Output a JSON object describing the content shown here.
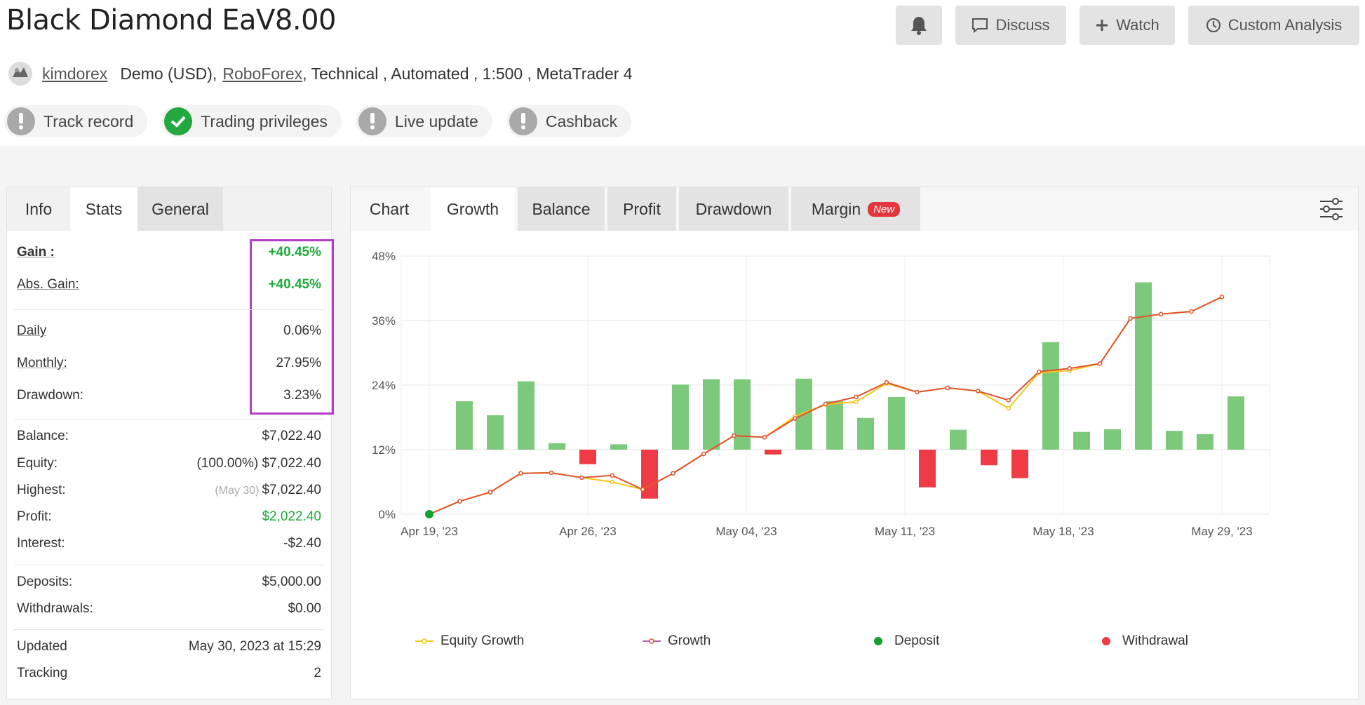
{
  "header": {
    "title": "Black Diamond EaV8.00",
    "buttons": {
      "discuss": "Discuss",
      "watch": "Watch",
      "custom": "Custom Analysis"
    },
    "user": "kimdorex",
    "account_prefix": "Demo (USD),",
    "broker": "RoboForex",
    "account_suffix": ", Technical , Automated , 1:500 , MetaTrader 4",
    "badges": [
      "Track record",
      "Trading privileges",
      "Live update",
      "Cashback"
    ]
  },
  "left": {
    "tabs": [
      "Info",
      "Stats",
      "General"
    ],
    "stats": {
      "gain": {
        "label": "Gain :",
        "value": "+40.45%"
      },
      "abs_gain": {
        "label": "Abs. Gain:",
        "value": "+40.45%"
      },
      "daily": {
        "label": "Daily",
        "value": "0.06%"
      },
      "monthly": {
        "label": "Monthly:",
        "value": "27.95%"
      },
      "drawdown": {
        "label": "Drawdown:",
        "value": "3.23%"
      },
      "balance": {
        "label": "Balance:",
        "value": "$7,022.40"
      },
      "equity": {
        "label": "Equity:",
        "value": "(100.00%) $7,022.40"
      },
      "highest": {
        "label": "Highest:",
        "note": "(May 30)",
        "value": "$7,022.40"
      },
      "profit": {
        "label": "Profit:",
        "value": "$2,022.40"
      },
      "interest": {
        "label": "Interest:",
        "value": "-$2.40"
      },
      "deposits": {
        "label": "Deposits:",
        "value": "$5,000.00"
      },
      "withdrawals": {
        "label": "Withdrawals:",
        "value": "$0.00"
      },
      "updated": {
        "label": "Updated",
        "value": "May 30, 2023 at 15:29"
      },
      "tracking": {
        "label": "Tracking",
        "value": "2"
      }
    }
  },
  "right": {
    "tabs": [
      "Chart",
      "Growth",
      "Balance",
      "Profit",
      "Drawdown",
      "Margin"
    ],
    "new_tag": "New",
    "legend": [
      "Equity Growth",
      "Growth",
      "Deposit",
      "Withdrawal"
    ]
  },
  "colors": {
    "green_bar": "#7cc97c",
    "red_bar": "#ef3b45",
    "growth": "#e0522f",
    "equity": "#f5c51a",
    "deposit": "#12a12f",
    "highlight": "#b13ec5"
  },
  "chart_data": {
    "type": "bar",
    "ylim": [
      0,
      48
    ],
    "yticks": [
      "0%",
      "12%",
      "24%",
      "36%",
      "48%"
    ],
    "xtick_labels": [
      "Apr 19, '23",
      "Apr 26, '23",
      "May 04, '23",
      "May 11, '23",
      "May 18, '23",
      "May 29, '23"
    ],
    "daily_bar_values": [
      21.0,
      18.4,
      24.7,
      13.2,
      9.3,
      13.0,
      2.9,
      24.1,
      25.1,
      25.1,
      11.1,
      25.2,
      21.0,
      17.9,
      21.8,
      5.0,
      15.7,
      9.1,
      6.7,
      32.0,
      15.3,
      15.8,
      43.1,
      15.5,
      14.9,
      21.9
    ],
    "bar_baseline": 12,
    "series": [
      {
        "name": "Growth",
        "values": [
          0,
          2.4,
          4.1,
          7.6,
          7.7,
          6.8,
          7.2,
          4.6,
          7.6,
          11.2,
          14.6,
          14.3,
          17.8,
          20.5,
          21.8,
          24.5,
          22.7,
          23.5,
          22.9,
          21.2,
          26.5,
          27.1,
          28.0,
          36.4,
          37.2,
          37.7,
          40.4
        ]
      },
      {
        "name": "Equity Growth",
        "values": [
          0,
          2.4,
          4.1,
          7.6,
          7.7,
          6.8,
          6.0,
          4.6,
          7.6,
          11.2,
          14.6,
          14.3,
          18.2,
          20.4,
          20.9,
          24.3,
          22.7,
          23.5,
          22.9,
          19.7,
          26.3,
          26.7,
          28.0,
          36.4,
          37.2,
          37.7,
          40.4
        ]
      }
    ]
  }
}
